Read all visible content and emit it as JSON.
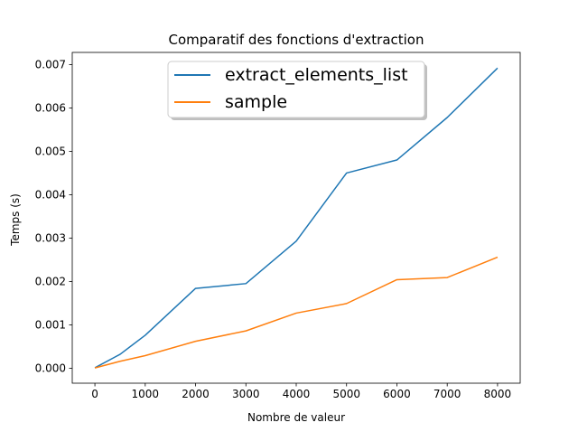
{
  "chart_data": {
    "type": "line",
    "title": "Comparatif des fonctions d'extraction",
    "xlabel": "Nombre de valeur",
    "ylabel": "Temps (s)",
    "xlim": [
      -450,
      8450
    ],
    "ylim": [
      -0.000346,
      0.00728
    ],
    "xticks": [
      0,
      1000,
      2000,
      3000,
      4000,
      5000,
      6000,
      7000,
      8000
    ],
    "xtick_labels": [
      "0",
      "1000",
      "2000",
      "3000",
      "4000",
      "5000",
      "6000",
      "7000",
      "8000"
    ],
    "yticks": [
      0,
      0.001,
      0.002,
      0.003,
      0.004,
      0.005,
      0.006,
      0.007
    ],
    "ytick_labels": [
      "0.000",
      "0.001",
      "0.002",
      "0.003",
      "0.004",
      "0.005",
      "0.006",
      "0.007"
    ],
    "grid": false,
    "legend_position": "top-center",
    "x": [
      0,
      500,
      1000,
      2000,
      3000,
      4000,
      5000,
      6000,
      7000,
      8000
    ],
    "series": [
      {
        "name": "extract_elements_list",
        "color": "#1f77b4",
        "values": [
          1e-05,
          0.00032,
          0.00076,
          0.00184,
          0.00195,
          0.00293,
          0.0045,
          0.0048,
          0.00578,
          0.00692
        ]
      },
      {
        "name": "sample",
        "color": "#ff7f0e",
        "values": [
          5e-06,
          0.00016,
          0.00029,
          0.00062,
          0.00086,
          0.00127,
          0.00149,
          0.00204,
          0.00209,
          0.00256
        ]
      }
    ]
  }
}
